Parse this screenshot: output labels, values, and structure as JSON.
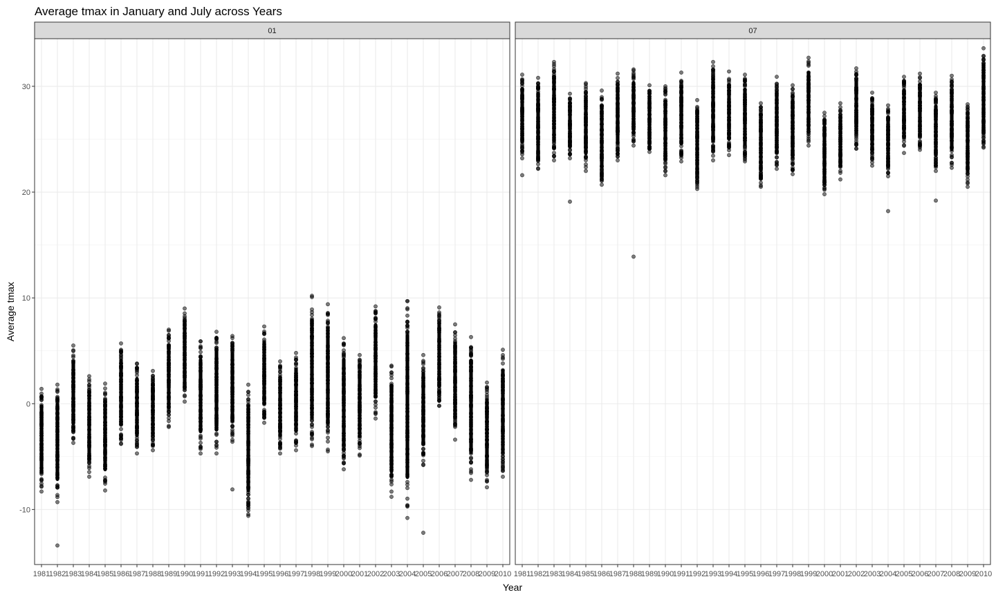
{
  "chart_data": {
    "type": "scatter",
    "title": "Average tmax in January and July across Years",
    "xlabel": "Year",
    "ylabel": "Average tmax",
    "ylim": [
      -15.2,
      34.5
    ],
    "yticks": [
      -10,
      0,
      10,
      20,
      30
    ],
    "yticklabels": [
      "-10",
      "0",
      "10",
      "20",
      "30"
    ],
    "grid": true,
    "legend": "none",
    "point_color": "#000000",
    "point_opacity": 0.5,
    "strip_color": "#d9d9d9",
    "years": [
      "1981",
      "1982",
      "1983",
      "1984",
      "1985",
      "1986",
      "1987",
      "1988",
      "1989",
      "1990",
      "1991",
      "1992",
      "1993",
      "1994",
      "1995",
      "1996",
      "1997",
      "1998",
      "1999",
      "2000",
      "2001",
      "2002",
      "2003",
      "2004",
      "2005",
      "2006",
      "2007",
      "2008",
      "2009",
      "2010"
    ],
    "panels": [
      {
        "strip": "01",
        "ranges": [
          [
            -8.3,
            1.4
          ],
          [
            -9.3,
            1.8
          ],
          [
            -3.7,
            5.5
          ],
          [
            -6.9,
            2.6
          ],
          [
            -8.2,
            1.9
          ],
          [
            -3.8,
            5.7
          ],
          [
            -4.7,
            3.8
          ],
          [
            -4.4,
            3.1
          ],
          [
            -2.2,
            7.0
          ],
          [
            0.2,
            9.0
          ],
          [
            -4.7,
            5.9
          ],
          [
            -4.7,
            6.8
          ],
          [
            -3.6,
            6.4
          ],
          [
            -10.6,
            1.8
          ],
          [
            -1.8,
            7.3
          ],
          [
            -4.7,
            4.0
          ],
          [
            -4.4,
            4.8
          ],
          [
            -4.0,
            10.2
          ],
          [
            -4.5,
            9.4
          ],
          [
            -6.2,
            6.2
          ],
          [
            -4.9,
            4.6
          ],
          [
            -1.4,
            9.2
          ],
          [
            -8.8,
            3.6
          ],
          [
            -10.8,
            9.7
          ],
          [
            -5.8,
            4.6
          ],
          [
            -0.2,
            9.1
          ],
          [
            -3.4,
            7.5
          ],
          [
            -7.2,
            6.3
          ],
          [
            -7.9,
            2.0
          ],
          [
            -6.9,
            5.1
          ]
        ],
        "outliers": [
          {
            "year": "1982",
            "value": -13.4
          },
          {
            "year": "1993",
            "value": -8.1
          },
          {
            "year": "2005",
            "value": -12.2
          },
          {
            "year": "2008",
            "value": -6.4
          },
          {
            "year": "2001",
            "value": -4.8
          }
        ]
      },
      {
        "strip": "07",
        "ranges": [
          [
            23.2,
            31.1
          ],
          [
            22.2,
            30.8
          ],
          [
            23.0,
            32.3
          ],
          [
            23.2,
            29.3
          ],
          [
            22.0,
            30.3
          ],
          [
            20.7,
            29.6
          ],
          [
            23.0,
            31.2
          ],
          [
            24.4,
            31.6
          ],
          [
            23.8,
            30.1
          ],
          [
            21.6,
            30.0
          ],
          [
            22.9,
            31.3
          ],
          [
            20.3,
            28.7
          ],
          [
            23.0,
            32.3
          ],
          [
            23.5,
            31.4
          ],
          [
            22.9,
            31.1
          ],
          [
            20.5,
            28.4
          ],
          [
            22.2,
            30.9
          ],
          [
            21.7,
            30.1
          ],
          [
            24.4,
            32.7
          ],
          [
            19.8,
            27.5
          ],
          [
            21.2,
            28.4
          ],
          [
            24.1,
            31.7
          ],
          [
            22.5,
            29.4
          ],
          [
            21.5,
            28.2
          ],
          [
            23.7,
            30.9
          ],
          [
            24.0,
            31.2
          ],
          [
            22.0,
            29.4
          ],
          [
            22.3,
            31.0
          ],
          [
            20.5,
            28.3
          ],
          [
            24.2,
            33.6
          ]
        ],
        "outliers": [
          {
            "year": "1981",
            "value": 21.6
          },
          {
            "year": "1984",
            "value": 19.1
          },
          {
            "year": "1988",
            "value": 13.9
          },
          {
            "year": "2004",
            "value": 18.2
          },
          {
            "year": "2007",
            "value": 19.2
          }
        ]
      }
    ]
  }
}
